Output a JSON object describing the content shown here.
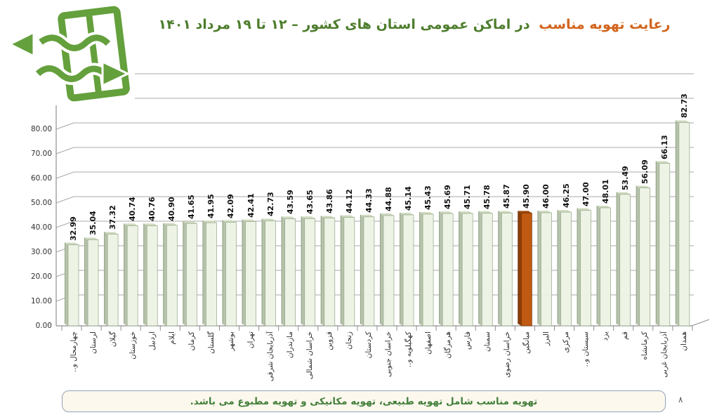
{
  "header": {
    "title_highlight": "رعایت تهویه مناسب",
    "title_rest": "در اماکن عمومی استان های کشور – ۱۲ تا ۱۹ مرداد ۱۴۰۱",
    "title_highlight_color": "#d2641c",
    "title_color": "#4e7d2d"
  },
  "logo": {
    "meaning": "window-with-airflow-ventilation-icon",
    "color": "#64a03c"
  },
  "footer": {
    "note": "تهویه مناسب شامل تهویه طبیعی، تهویه مکانیکی و تهویه مطبوع می باشد.",
    "page_number": "۸"
  },
  "chart_data": {
    "type": "bar",
    "style": "3d-column",
    "title": "رعایت تهویه مناسب در اماکن عمومی استان های کشور – ۱۲ تا ۱۹ مرداد ۱۴۰۱",
    "xlabel": "",
    "ylabel": "",
    "ylim": [
      0,
      100
    ],
    "ytick_step": 10,
    "yticks_visible": [
      "0.00",
      "10.00",
      "20.00",
      "30.00",
      "40.00",
      "50.00",
      "60.00",
      "70.00",
      "80.00"
    ],
    "grid": true,
    "legend": false,
    "value_label_decimals": 2,
    "categories": [
      "چهارمحال و..",
      "لرستان",
      "گیلان",
      "خوزستان",
      "اردبیل",
      "ایلام",
      "کرمان",
      "گلستان",
      "بوشهر",
      "تهران",
      "آذربایجان شرقی",
      "مازندران",
      "خراسان شمالی",
      "قزوین",
      "زنجان",
      "کردستان",
      "خراسان جنوبی",
      "کهگیلویه و..",
      "اصفهان",
      "هرمزگان",
      "فارس",
      "سمنان",
      "خراسان رضوی",
      "میانگین",
      "البرز",
      "مرکزی",
      "سیستان و..",
      "یزد",
      "قم",
      "کرمانشاه",
      "آذربایجان غربی",
      "همدان"
    ],
    "values": [
      32.99,
      35.04,
      37.32,
      40.74,
      40.76,
      40.9,
      41.65,
      41.95,
      42.09,
      42.41,
      42.73,
      43.59,
      43.65,
      43.86,
      44.12,
      44.33,
      44.88,
      45.14,
      45.43,
      45.69,
      45.71,
      45.78,
      45.87,
      45.9,
      46.0,
      46.25,
      47.0,
      48.01,
      53.49,
      56.09,
      66.13,
      82.73
    ],
    "highlight_index": 23,
    "highlight_label": "میانگین",
    "colors": {
      "bar_face": "#ecf3e4",
      "bar_side": "#b7c3ac",
      "bar_top": "#cfdabf",
      "bar_edge": "#93a486",
      "highlight_face": "#c05a12",
      "highlight_side": "#8a3c07",
      "highlight_top": "#9c4509",
      "highlight_edge": "#6f3305",
      "grid": "#a8a8a8",
      "axis": "#8f8f8f"
    }
  }
}
